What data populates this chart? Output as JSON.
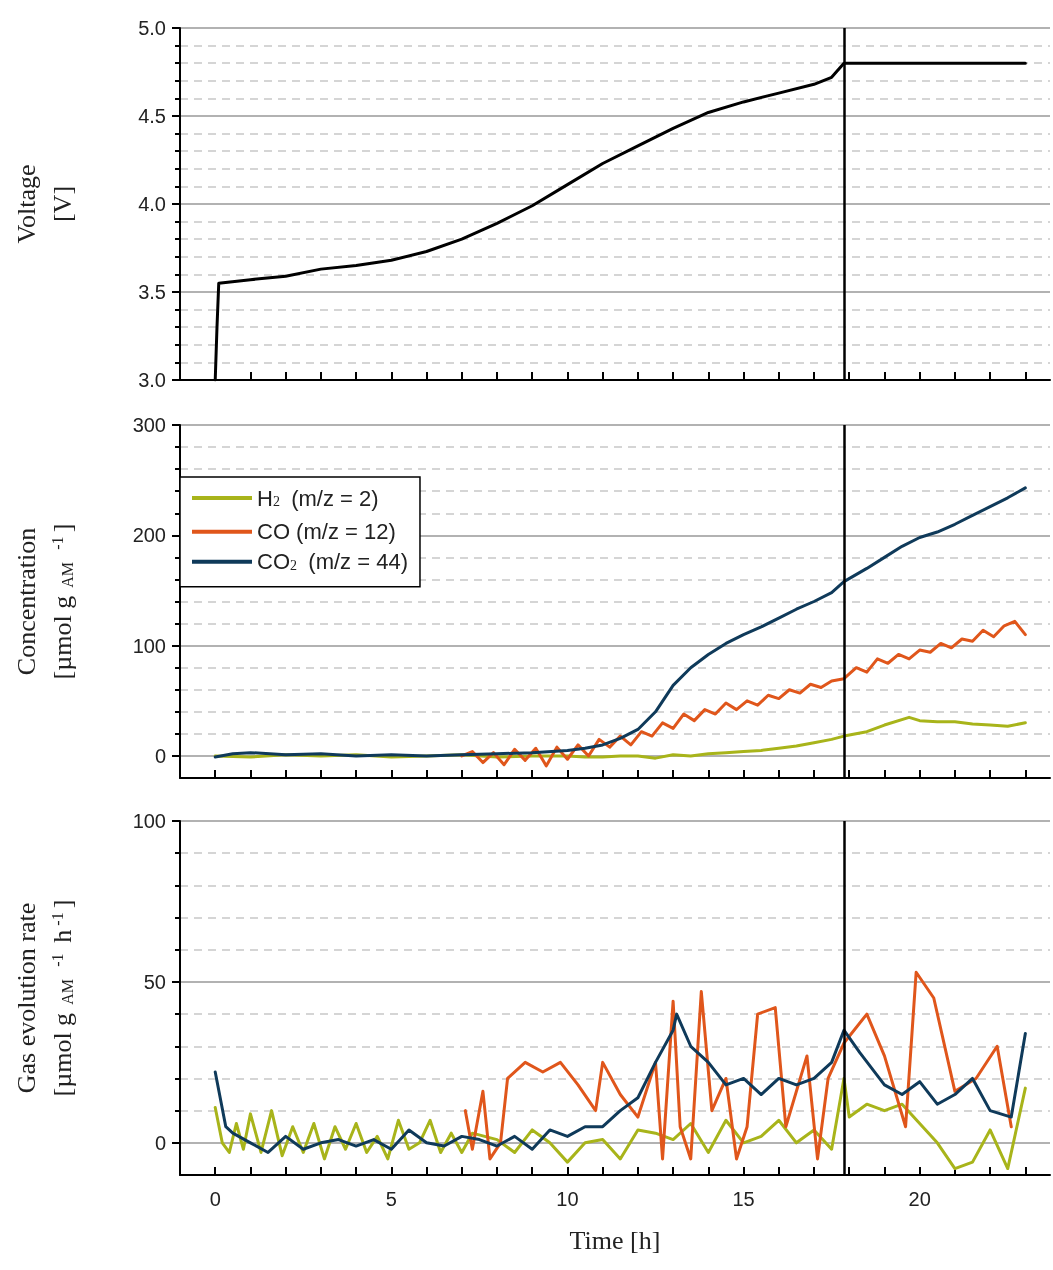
{
  "chart_data": [
    {
      "type": "line",
      "ylabel": "Voltage\n[V]",
      "xlim": [
        -1,
        23.7
      ],
      "ylim": [
        3.0,
        5.0
      ],
      "tick_labels": "y",
      "grid": "y",
      "xticks": [
        {
          "value": 0,
          "label": null
        },
        {
          "value": 1,
          "label": null
        },
        {
          "value": 2,
          "label": null
        },
        {
          "value": 3,
          "label": null
        },
        {
          "value": 4,
          "label": null
        },
        {
          "value": 5,
          "label": null
        },
        {
          "value": 6,
          "label": null
        },
        {
          "value": 7,
          "label": null
        },
        {
          "value": 8,
          "label": null
        },
        {
          "value": 9,
          "label": null
        },
        {
          "value": 10,
          "label": null
        },
        {
          "value": 11,
          "label": null
        },
        {
          "value": 12,
          "label": null
        },
        {
          "value": 13,
          "label": null
        },
        {
          "value": 14,
          "label": null
        },
        {
          "value": 15,
          "label": null
        },
        {
          "value": 16,
          "label": null
        },
        {
          "value": 17,
          "label": null
        },
        {
          "value": 18,
          "label": null
        },
        {
          "value": 19,
          "label": null
        },
        {
          "value": 20,
          "label": null
        },
        {
          "value": 21,
          "label": null
        },
        {
          "value": 22,
          "label": null
        },
        {
          "value": 23,
          "label": null
        }
      ],
      "yticks": [
        {
          "value": 3.0,
          "label": "3.0"
        },
        {
          "value": 3.1,
          "label": null
        },
        {
          "value": 3.2,
          "label": null
        },
        {
          "value": 3.3,
          "label": null
        },
        {
          "value": 3.4,
          "label": null
        },
        3.5,
        {
          "value": 3.6,
          "label": null
        },
        {
          "value": 3.7,
          "label": null
        },
        {
          "value": 3.8,
          "label": null
        },
        {
          "value": 3.9,
          "label": null
        },
        {
          "value": 4.0,
          "label": "4.0"
        },
        {
          "value": 4.1,
          "label": null
        },
        {
          "value": 4.2,
          "label": null
        },
        {
          "value": 4.3,
          "label": null
        },
        {
          "value": 4.4,
          "label": null
        },
        4.5,
        {
          "value": 4.6,
          "label": null
        },
        {
          "value": 4.7,
          "label": null
        },
        {
          "value": 4.8,
          "label": null
        },
        {
          "value": 4.9,
          "label": null
        },
        {
          "value": 5.0,
          "label": "5.0"
        }
      ],
      "ref_lines": [
        {
          "axis": "x",
          "value": 17.85,
          "label": null,
          "color": "#000000"
        }
      ],
      "series": [
        {
          "color": "#000000",
          "x": [
            0,
            0.05,
            0.1,
            1,
            2,
            3,
            4,
            5,
            6,
            7,
            8,
            9,
            10,
            11,
            12,
            13,
            14,
            15,
            16,
            17,
            17.5,
            17.85,
            23
          ],
          "values": [
            3.0,
            3.3,
            3.55,
            3.57,
            3.59,
            3.63,
            3.65,
            3.68,
            3.73,
            3.8,
            3.89,
            3.99,
            4.11,
            4.23,
            4.33,
            4.43,
            4.52,
            4.58,
            4.63,
            4.68,
            4.72,
            4.8,
            4.8
          ]
        }
      ]
    },
    {
      "type": "line",
      "ylabel": "Concentration\n[µmol g$_{AM}$$^{-1}$]",
      "xlim": [
        -1,
        23.7
      ],
      "ylim": [
        -20,
        300
      ],
      "tick_labels": "y",
      "grid": "y",
      "legend": "top left",
      "xticks": [
        {
          "value": 0,
          "label": null
        },
        {
          "value": 1,
          "label": null
        },
        {
          "value": 2,
          "label": null
        },
        {
          "value": 3,
          "label": null
        },
        {
          "value": 4,
          "label": null
        },
        {
          "value": 5,
          "label": null
        },
        {
          "value": 6,
          "label": null
        },
        {
          "value": 7,
          "label": null
        },
        {
          "value": 8,
          "label": null
        },
        {
          "value": 9,
          "label": null
        },
        {
          "value": 10,
          "label": null
        },
        {
          "value": 11,
          "label": null
        },
        {
          "value": 12,
          "label": null
        },
        {
          "value": 13,
          "label": null
        },
        {
          "value": 14,
          "label": null
        },
        {
          "value": 15,
          "label": null
        },
        {
          "value": 16,
          "label": null
        },
        {
          "value": 17,
          "label": null
        },
        {
          "value": 18,
          "label": null
        },
        {
          "value": 19,
          "label": null
        },
        {
          "value": 20,
          "label": null
        },
        {
          "value": 21,
          "label": null
        },
        {
          "value": 22,
          "label": null
        },
        {
          "value": 23,
          "label": null
        }
      ],
      "yticks": [
        0,
        {
          "value": 20,
          "label": null
        },
        {
          "value": 40,
          "label": null
        },
        {
          "value": 60,
          "label": null
        },
        {
          "value": 80,
          "label": null
        },
        100,
        {
          "value": 120,
          "label": null
        },
        {
          "value": 140,
          "label": null
        },
        {
          "value": 160,
          "label": null
        },
        {
          "value": 180,
          "label": null
        },
        200,
        {
          "value": 220,
          "label": null
        },
        {
          "value": 240,
          "label": null
        },
        {
          "value": 260,
          "label": null
        },
        {
          "value": 280,
          "label": null
        },
        300
      ],
      "ref_lines": [
        {
          "axis": "x",
          "value": 17.85,
          "label": null,
          "color": "#000000"
        }
      ],
      "series": [
        {
          "name": "H$_{2}$ (m/z = 2)",
          "color": "#a8b41a",
          "x": [
            0,
            1,
            2,
            3,
            4,
            5,
            6,
            7,
            8,
            9,
            10,
            10.5,
            11,
            11.5,
            12,
            12.5,
            13,
            13.5,
            14,
            14.5,
            15,
            15.5,
            16,
            16.5,
            17,
            17.5,
            17.85,
            18.5,
            19,
            19.7,
            20,
            20.5,
            21,
            21.5,
            22,
            22.5,
            23
          ],
          "values": [
            0,
            -1,
            1,
            0,
            1,
            -1,
            0,
            1,
            -1,
            0,
            0,
            -1,
            -1,
            0,
            0,
            -2,
            1,
            0,
            2,
            3,
            4,
            5,
            7,
            9,
            12,
            15,
            18,
            22,
            28,
            35,
            32,
            31,
            31,
            29,
            28,
            27,
            30
          ]
        },
        {
          "name": "CO (m/z = 12)",
          "color": "#e0561b",
          "x": [
            7,
            7.3,
            7.6,
            7.9,
            8.2,
            8.5,
            8.8,
            9.1,
            9.4,
            9.7,
            10,
            10.3,
            10.6,
            10.9,
            11.2,
            11.5,
            11.8,
            12.1,
            12.4,
            12.7,
            13,
            13.3,
            13.6,
            13.9,
            14.2,
            14.5,
            14.8,
            15.1,
            15.4,
            15.7,
            16,
            16.3,
            16.6,
            16.9,
            17.2,
            17.5,
            17.85,
            18.2,
            18.5,
            18.8,
            19.1,
            19.4,
            19.7,
            20,
            20.3,
            20.6,
            20.9,
            21.2,
            21.5,
            21.8,
            22.1,
            22.4,
            22.7,
            23
          ],
          "values": [
            0,
            4,
            -6,
            3,
            -8,
            6,
            -4,
            7,
            -9,
            8,
            -3,
            10,
            0,
            15,
            8,
            18,
            10,
            22,
            18,
            30,
            25,
            38,
            32,
            42,
            38,
            48,
            42,
            50,
            46,
            55,
            52,
            60,
            57,
            65,
            62,
            68,
            70,
            80,
            76,
            88,
            84,
            92,
            88,
            96,
            94,
            102,
            98,
            106,
            104,
            114,
            108,
            118,
            122,
            110
          ]
        },
        {
          "name": "CO$_{2}$ (m/z = 44)",
          "color": "#0f3a5a",
          "x": [
            0,
            0.5,
            1,
            2,
            3,
            4,
            5,
            6,
            7,
            8,
            9,
            10,
            10.5,
            11,
            11.5,
            12,
            12.5,
            13,
            13.5,
            14,
            14.5,
            15,
            15.5,
            16,
            16.5,
            17,
            17.5,
            17.85,
            18.5,
            19,
            19.5,
            20,
            20.5,
            21,
            21.5,
            22,
            22.5,
            23
          ],
          "values": [
            -1,
            2,
            3,
            1,
            2,
            0,
            1,
            0,
            1,
            2,
            3,
            5,
            7,
            10,
            16,
            24,
            40,
            64,
            80,
            92,
            102,
            110,
            117,
            125,
            133,
            140,
            148,
            158,
            170,
            180,
            190,
            198,
            203,
            210,
            218,
            226,
            234,
            243
          ]
        }
      ]
    },
    {
      "type": "line",
      "xlabel": "Time [h]",
      "ylabel": "Gas evolution rate\n[µmol g$_{AM}$$^{-1}$ h$^{-1}$]",
      "xlim": [
        -1,
        23.7
      ],
      "ylim": [
        -10,
        100
      ],
      "grid": "y",
      "xticks": [
        0,
        {
          "value": 1,
          "label": null
        },
        {
          "value": 2,
          "label": null
        },
        {
          "value": 3,
          "label": null
        },
        {
          "value": 4,
          "label": null
        },
        5,
        {
          "value": 6,
          "label": null
        },
        {
          "value": 7,
          "label": null
        },
        {
          "value": 8,
          "label": null
        },
        {
          "value": 9,
          "label": null
        },
        10,
        {
          "value": 11,
          "label": null
        },
        {
          "value": 12,
          "label": null
        },
        {
          "value": 13,
          "label": null
        },
        {
          "value": 14,
          "label": null
        },
        15,
        {
          "value": 16,
          "label": null
        },
        {
          "value": 17,
          "label": null
        },
        {
          "value": 18,
          "label": null
        },
        {
          "value": 19,
          "label": null
        },
        20,
        {
          "value": 21,
          "label": null
        },
        {
          "value": 22,
          "label": null
        },
        {
          "value": 23,
          "label": null
        }
      ],
      "yticks": [
        0,
        {
          "value": 10,
          "label": null
        },
        {
          "value": 20,
          "label": null
        },
        {
          "value": 30,
          "label": null
        },
        {
          "value": 40,
          "label": null
        },
        50,
        {
          "value": 60,
          "label": null
        },
        {
          "value": 70,
          "label": null
        },
        {
          "value": 80,
          "label": null
        },
        {
          "value": 90,
          "label": null
        },
        100
      ],
      "ref_lines": [
        {
          "axis": "x",
          "value": 17.85,
          "label": null,
          "color": "#000000"
        }
      ],
      "series": [
        {
          "color": "#a8b41a",
          "x": [
            0,
            0.2,
            0.4,
            0.6,
            0.8,
            1,
            1.3,
            1.6,
            1.9,
            2.2,
            2.5,
            2.8,
            3.1,
            3.4,
            3.7,
            4,
            4.3,
            4.6,
            4.9,
            5.2,
            5.5,
            5.8,
            6.1,
            6.4,
            6.7,
            7,
            7.3,
            8,
            8.5,
            9,
            9.5,
            10,
            10.5,
            11,
            11.5,
            12,
            12.5,
            13,
            13.5,
            14,
            14.5,
            15,
            15.5,
            16,
            16.5,
            17,
            17.5,
            17.85,
            18,
            18.5,
            19,
            19.5,
            20,
            20.5,
            21,
            21.5,
            22,
            22.5,
            23
          ],
          "values": [
            11,
            0,
            -3,
            6,
            -2,
            9,
            -3,
            10,
            -4,
            5,
            -3,
            6,
            -5,
            5,
            -2,
            6,
            -3,
            2,
            -5,
            7,
            -2,
            0,
            7,
            -3,
            3,
            -3,
            3,
            1,
            -3,
            4,
            0,
            -6,
            0,
            1,
            -5,
            4,
            3,
            1,
            6,
            -3,
            7,
            0,
            2,
            7,
            0,
            4,
            -2,
            20,
            8,
            12,
            10,
            12,
            6,
            0,
            -8,
            -6,
            4,
            -8,
            17
          ]
        },
        {
          "color": "#e0561b",
          "x": [
            7.1,
            7.3,
            7.6,
            7.8,
            8.1,
            8.3,
            8.5,
            8.8,
            9,
            9.3,
            9.5,
            9.8,
            10.1,
            10.3,
            10.6,
            10.8,
            11,
            11.2,
            11.5,
            11.7,
            12,
            12.3,
            12.5,
            12.7,
            13,
            13.2,
            13.5,
            13.8,
            14.1,
            14.3,
            14.5,
            14.8,
            15.1,
            15.4,
            15.6,
            15.9,
            16.2,
            16.5,
            16.8,
            17.1,
            17.4,
            17.6,
            17.85,
            18.2,
            18.5,
            18.8,
            19,
            19.3,
            19.6,
            19.9,
            20.2,
            20.4,
            20.7,
            21,
            21.3,
            21.6,
            21.9,
            22.2,
            22.4,
            22.6
          ],
          "values": [
            10,
            -2,
            16,
            -5,
            0,
            20,
            null,
            25,
            null,
            22,
            null,
            25,
            null,
            18,
            null,
            10,
            25,
            null,
            15,
            null,
            8,
            null,
            25,
            -5,
            44,
            5,
            -5,
            47,
            10,
            null,
            20,
            -5,
            5,
            40,
            null,
            42,
            5,
            null,
            27,
            -5,
            20,
            null,
            31,
            null,
            40,
            null,
            27,
            null,
            5,
            53,
            null,
            45,
            null,
            16,
            null,
            20,
            null,
            30,
            null,
            5
          ]
        },
        {
          "color": "#0f3a5a",
          "x": [
            0,
            0.3,
            0.5,
            1,
            1.5,
            2,
            2.5,
            3,
            3.5,
            4,
            4.5,
            5,
            5.5,
            6,
            6.5,
            7,
            7.5,
            8,
            8.5,
            9,
            9.5,
            10,
            10.5,
            11,
            11.5,
            12,
            12.5,
            13,
            13.1,
            13.5,
            14,
            14.5,
            15,
            15.5,
            16,
            16.5,
            17,
            17.5,
            17.85,
            18.3,
            19,
            19.5,
            20,
            20.5,
            21,
            21.5,
            22,
            22.6,
            23
          ],
          "values": [
            22,
            5,
            3,
            0,
            -3,
            2,
            -2,
            0,
            1,
            -1,
            1,
            -2,
            4,
            0,
            -1,
            2,
            1,
            -1,
            2,
            -2,
            4,
            2,
            5,
            5,
            10,
            14,
            25,
            35,
            40,
            30,
            25,
            18,
            20,
            15,
            20,
            18,
            20,
            25,
            35,
            28,
            18,
            15,
            19,
            12,
            15,
            20,
            10,
            8,
            34
          ]
        }
      ]
    }
  ]
}
